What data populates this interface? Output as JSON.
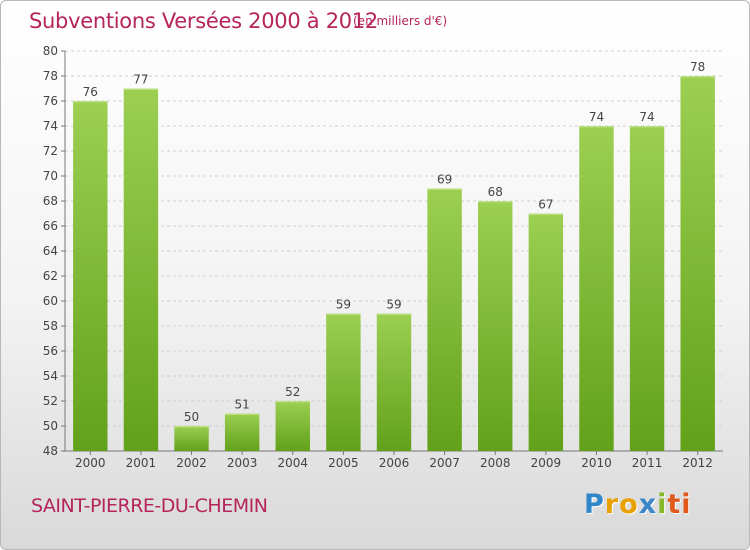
{
  "header": {
    "title": "Subventions Versées 2000 à 2012",
    "unit": "(en milliers d'€)"
  },
  "footer": {
    "commune": "SAINT-PIERRE-DU-CHEMIN",
    "logo": "Proxiti",
    "logo_letters": [
      "P",
      "r",
      "o",
      "x",
      "i",
      "ti"
    ]
  },
  "colors": {
    "bar_light": "#9ccf52",
    "bar_dark": "#62a11a",
    "title": "#b5245a",
    "grid": "#cfcfcf",
    "axis_text": "#444444"
  },
  "chart_data": {
    "type": "bar",
    "title": "Subventions Versées 2000 à 2012",
    "subtitle": "(en milliers d'€)",
    "categories": [
      "2000",
      "2001",
      "2002",
      "2003",
      "2004",
      "2005",
      "2006",
      "2007",
      "2008",
      "2009",
      "2010",
      "2011",
      "2012"
    ],
    "values": [
      76,
      77,
      50,
      51,
      52,
      59,
      59,
      69,
      68,
      67,
      74,
      74,
      78
    ],
    "ylim": [
      48,
      80
    ],
    "yticks": [
      48,
      50,
      52,
      54,
      56,
      58,
      60,
      62,
      64,
      66,
      68,
      70,
      72,
      74,
      76,
      78,
      80
    ],
    "grid": "horizontal dashed",
    "legend": "none"
  }
}
